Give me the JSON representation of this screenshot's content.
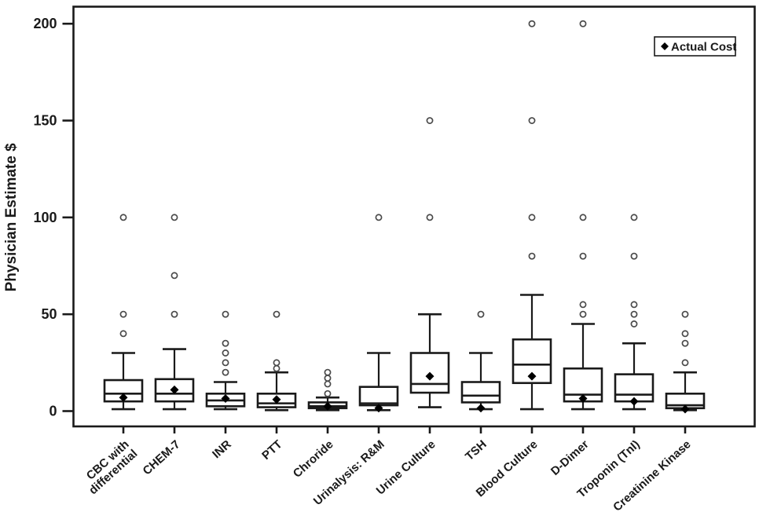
{
  "figure": {
    "background": "#ffffff",
    "axis_color": "#1a1a1a",
    "outlier_stroke": "#4a4a4a",
    "marker_color": "#000000"
  },
  "legend": {
    "label": "Actual Cost",
    "marker": "diamond"
  },
  "chart_data": {
    "type": "boxplot",
    "title": "",
    "xlabel": "",
    "ylabel": "Physician Estimate $",
    "ylim": [
      0,
      209
    ],
    "yticks": [
      0,
      50,
      100,
      150,
      200
    ],
    "grid": false,
    "legend_position": "top-right",
    "categories": [
      "CBC with differential",
      "CHEM-7",
      "INR",
      "PTT",
      "Chroride",
      "Urinalysis: R&M",
      "Urine Culture",
      "TSH",
      "Blood Culture",
      "D-Dimer",
      "Troponin (TnI)",
      "Creatinine Kinase"
    ],
    "series": [
      {
        "name": "CBC with differential",
        "label_lines": [
          "CBC with",
          "differential"
        ],
        "whisker_low": 1,
        "q1": 5,
        "median": 9,
        "q3": 16,
        "whisker_high": 30,
        "actual_cost": 7,
        "outliers": [
          40,
          50,
          100
        ]
      },
      {
        "name": "CHEM-7",
        "label_lines": [
          "CHEM-7"
        ],
        "whisker_low": 1,
        "q1": 5,
        "median": 9,
        "q3": 16.5,
        "whisker_high": 32,
        "actual_cost": 11,
        "outliers": [
          50,
          70,
          100
        ]
      },
      {
        "name": "INR",
        "label_lines": [
          "INR"
        ],
        "whisker_low": 1,
        "q1": 2.5,
        "median": 5.5,
        "q3": 9,
        "whisker_high": 15,
        "actual_cost": 6.5,
        "outliers": [
          20,
          25,
          30,
          35,
          50
        ]
      },
      {
        "name": "PTT",
        "label_lines": [
          "PTT"
        ],
        "whisker_low": 0.5,
        "q1": 2,
        "median": 4,
        "q3": 9,
        "whisker_high": 20,
        "actual_cost": 6,
        "outliers": [
          22,
          25,
          50
        ]
      },
      {
        "name": "Chroride",
        "label_lines": [
          "Chroride"
        ],
        "whisker_low": 0.5,
        "q1": 1.5,
        "median": 2.5,
        "q3": 4.5,
        "whisker_high": 7,
        "actual_cost": 2.5,
        "outliers": [
          9,
          14,
          17,
          20
        ]
      },
      {
        "name": "Urinalysis: R&M",
        "label_lines": [
          "Urinalysis: R&M"
        ],
        "whisker_low": 0.5,
        "q1": 3,
        "median": 4,
        "q3": 12.5,
        "whisker_high": 30,
        "actual_cost": 1.5,
        "outliers": [
          100
        ]
      },
      {
        "name": "Urine Culture",
        "label_lines": [
          "Urine Culture"
        ],
        "whisker_low": 2,
        "q1": 9.5,
        "median": 14,
        "q3": 30,
        "whisker_high": 50,
        "actual_cost": 18,
        "outliers": [
          100,
          150
        ]
      },
      {
        "name": "TSH",
        "label_lines": [
          "TSH"
        ],
        "whisker_low": 1,
        "q1": 4.5,
        "median": 8,
        "q3": 15,
        "whisker_high": 30,
        "actual_cost": 1.5,
        "outliers": [
          50
        ]
      },
      {
        "name": "Blood Culture",
        "label_lines": [
          "Blood Culture"
        ],
        "whisker_low": 1,
        "q1": 14.5,
        "median": 24,
        "q3": 37,
        "whisker_high": 60,
        "actual_cost": 18,
        "outliers": [
          80,
          100,
          150,
          200
        ]
      },
      {
        "name": "D-Dimer",
        "label_lines": [
          "D-Dimer"
        ],
        "whisker_low": 1,
        "q1": 5,
        "median": 8.5,
        "q3": 22,
        "whisker_high": 45,
        "actual_cost": 6.5,
        "outliers": [
          50,
          55,
          80,
          100,
          200
        ]
      },
      {
        "name": "Troponin (TnI)",
        "label_lines": [
          "Troponin (TnI)"
        ],
        "whisker_low": 1,
        "q1": 5,
        "median": 8.5,
        "q3": 19,
        "whisker_high": 35,
        "actual_cost": 5,
        "outliers": [
          45,
          50,
          55,
          80,
          100
        ]
      },
      {
        "name": "Creatinine Kinase",
        "label_lines": [
          "Creatinine Kinase"
        ],
        "whisker_low": 0.5,
        "q1": 1.5,
        "median": 3,
        "q3": 9,
        "whisker_high": 20,
        "actual_cost": 1,
        "outliers": [
          25,
          35,
          40,
          50
        ]
      }
    ]
  }
}
